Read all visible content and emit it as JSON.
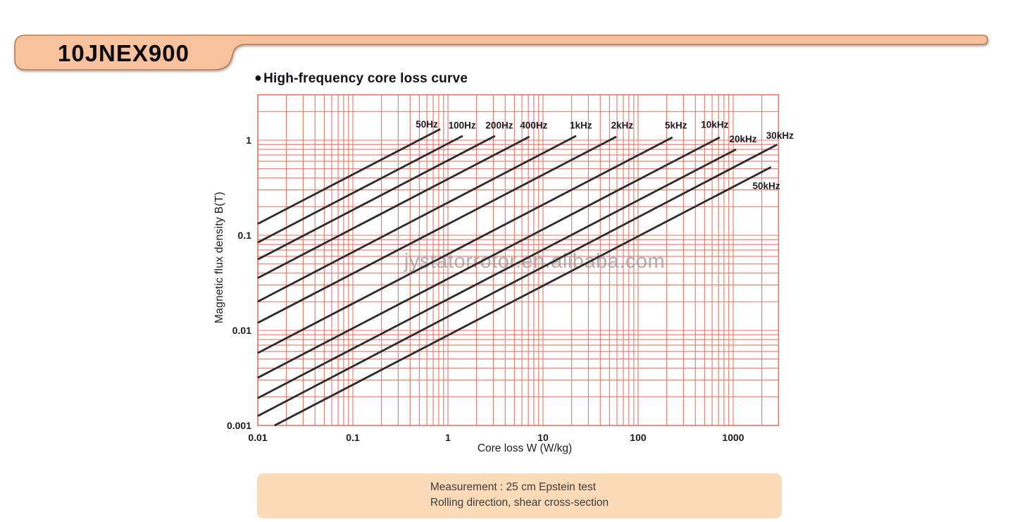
{
  "page": {
    "product_code": "10JNEX900",
    "title_bullet": "●",
    "figure_title": "High-frequency core loss curve",
    "watermark": "jystatorrotor.en.alibaba.com",
    "footnote_lines": [
      "Measurement : 25 cm Epstein test",
      "Rolling direction, shear cross-section"
    ]
  },
  "colors": {
    "tab_fill": "#f7c19c",
    "tab_stroke": "#b57d58",
    "heading_text": "#10101a",
    "tick_text": "#1b1b24",
    "grid": "#ec7362",
    "curve": "#2b2b2b",
    "footnote_bg": "#fbdab8",
    "footnote_text": "#3b3b3b",
    "watermark": "#9c9c9c"
  },
  "chart_data": {
    "type": "line",
    "title": "High-frequency core loss curve",
    "xlabel": "Core loss W (W/kg)",
    "ylabel": "Magnetic flux density B(T)",
    "x_scale": "log",
    "y_scale": "log",
    "xlim": [
      0.01,
      3000
    ],
    "ylim": [
      0.001,
      3
    ],
    "grid": "full log minor gridlines on both axes",
    "legend_position": "labels above each curve end",
    "x_tick_labels": [
      "0.01",
      "0.1",
      "1",
      "10",
      "100",
      "1000"
    ],
    "y_tick_labels": [
      "1",
      "0.1",
      "0.01",
      "0.001"
    ],
    "series_note": "Each curve is a straight power law on log-log axes: points are [core_loss_W_per_kg, flux_density_T] endpoints",
    "series": [
      {
        "name": "50Hz",
        "points": [
          [
            0.01,
            0.132
          ],
          [
            0.83,
            1.31
          ]
        ],
        "label_at": [
          0.6,
          1.47
        ]
      },
      {
        "name": "100Hz",
        "points": [
          [
            0.01,
            0.084
          ],
          [
            1.43,
            1.11
          ]
        ],
        "label_at": [
          1.41,
          1.43
        ]
      },
      {
        "name": "200Hz",
        "points": [
          [
            0.01,
            0.0557
          ],
          [
            3.13,
            1.11
          ]
        ],
        "label_at": [
          3.47,
          1.43
        ]
      },
      {
        "name": "400Hz",
        "points": [
          [
            0.01,
            0.0356
          ],
          [
            7.2,
            1.09
          ]
        ],
        "label_at": [
          8.0,
          1.43
        ]
      },
      {
        "name": "1kHz",
        "points": [
          [
            0.01,
            0.0201
          ],
          [
            22.3,
            1.11
          ]
        ],
        "label_at": [
          25,
          1.43
        ]
      },
      {
        "name": "2kHz",
        "points": [
          [
            0.01,
            0.012
          ],
          [
            59,
            1.09
          ]
        ],
        "label_at": [
          68,
          1.43
        ]
      },
      {
        "name": "5kHz",
        "points": [
          [
            0.01,
            0.00578
          ],
          [
            230,
            1.07
          ]
        ],
        "label_at": [
          250,
          1.43
        ]
      },
      {
        "name": "10kHz",
        "points": [
          [
            0.01,
            0.00318
          ],
          [
            722,
            1.07
          ]
        ],
        "label_at": [
          640,
          1.45
        ]
      },
      {
        "name": "20kHz",
        "points": [
          [
            0.01,
            0.00194
          ],
          [
            1070,
            0.8
          ]
        ],
        "label_at": [
          1270,
          1.03
        ]
      },
      {
        "name": "30kHz",
        "points": [
          [
            0.01,
            0.00126
          ],
          [
            2900,
            0.9
          ]
        ],
        "label_at": [
          3100,
          1.12
        ]
      },
      {
        "name": "50kHz",
        "points": [
          [
            0.015,
            0.001
          ],
          [
            2500,
            0.52
          ]
        ],
        "label_at": [
          2230,
          0.33
        ]
      }
    ]
  }
}
